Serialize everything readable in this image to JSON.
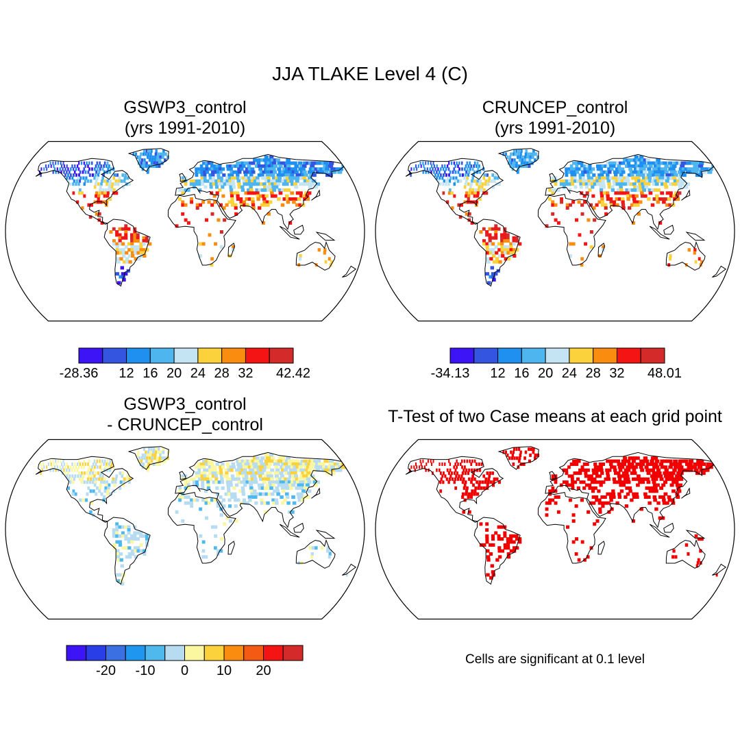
{
  "figure": {
    "title": "JJA TLAKE Level 4 (C)",
    "note": "Cells are significant at 0.1 level"
  },
  "panels": [
    {
      "id": "gswp3",
      "title_line1": "GSWP3_control",
      "title_line2": "(yrs 1991-2010)"
    },
    {
      "id": "cruncep",
      "title_line1": "CRUNCEP_control",
      "title_line2": "(yrs 1991-2010)"
    },
    {
      "id": "difference",
      "title_line1": "GSWP3_control",
      "title_line2": "- CRUNCEP_control"
    },
    {
      "id": "ttest",
      "title_line1": "T-Test of two Case means at each grid point",
      "title_line2": ""
    }
  ],
  "colorbars": {
    "gswp3": {
      "colors": [
        "#3c14f5",
        "#3355e0",
        "#1f8ff0",
        "#4fb5ee",
        "#c4e4f4",
        "#fcd23c",
        "#fa8c10",
        "#f51414",
        "#d42a2a"
      ],
      "labels": [
        "-28.36",
        "12",
        "16",
        "20",
        "24",
        "28",
        "32",
        "42.42"
      ],
      "label_at_boundary": [
        0,
        2,
        3,
        4,
        5,
        6,
        7,
        9
      ]
    },
    "cruncep": {
      "colors": [
        "#3c14f5",
        "#3355e0",
        "#1f8ff0",
        "#4fb5ee",
        "#c4e4f4",
        "#fcd23c",
        "#fa8c10",
        "#f51414",
        "#d42a2a"
      ],
      "labels": [
        "-34.13",
        "12",
        "16",
        "20",
        "24",
        "28",
        "32",
        "48.01"
      ],
      "label_at_boundary": [
        0,
        2,
        3,
        4,
        5,
        6,
        7,
        9
      ]
    },
    "difference": {
      "colors": [
        "#3c14f5",
        "#2a3ee8",
        "#3a70e2",
        "#1f97f0",
        "#4fb9ee",
        "#b7dcf2",
        "#fbf7a0",
        "#fcd23c",
        "#fa8c10",
        "#f55a14",
        "#f51414",
        "#d42a2a"
      ],
      "labels": [
        "-20",
        "-10",
        "0",
        "10",
        "20"
      ],
      "label_at_boundary": [
        2,
        4,
        6,
        8,
        10
      ]
    }
  },
  "map_colors": {
    "outline": "#000000",
    "ttest_significant": "#f20000"
  }
}
